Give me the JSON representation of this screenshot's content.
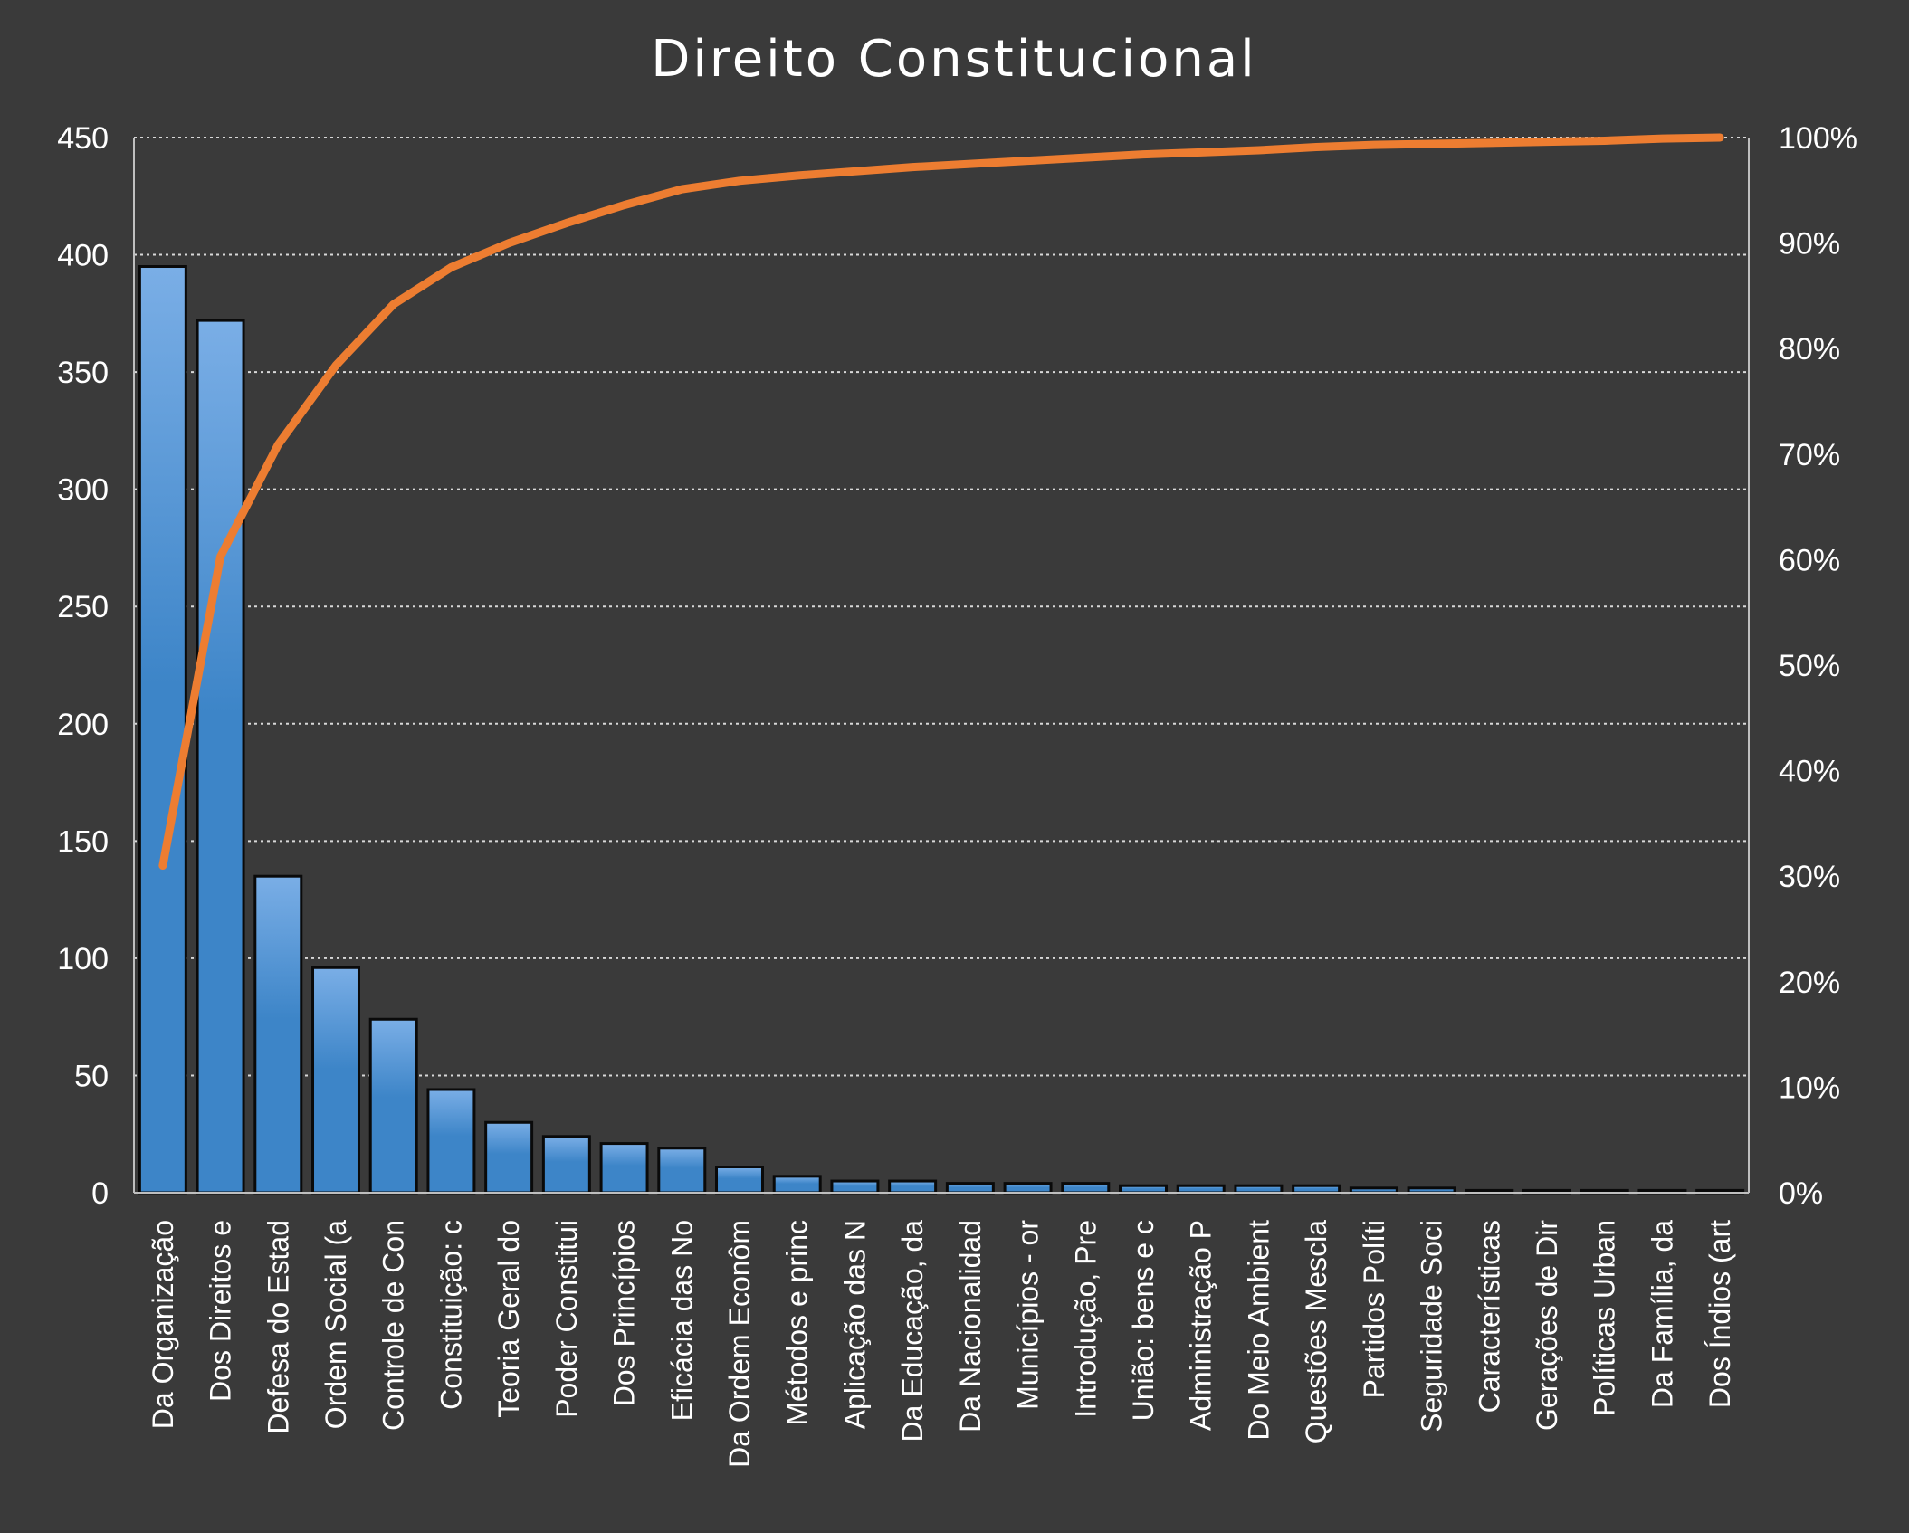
{
  "chart_data": {
    "type": "bar",
    "title": "Direito Constitucional",
    "categories": [
      "Da Organização",
      "Dos Direitos e",
      "Defesa do Estad",
      "Ordem Social (a",
      "Controle de Con",
      "Constituição: c",
      "Teoria Geral do",
      "Poder Constitui",
      "Dos Princípios",
      "Eficácia das No",
      "Da Ordem Econôm",
      "Métodos e princ",
      "Aplicação das N",
      "Da Educação, da",
      "Da Nacionalidad",
      "Municípios - or",
      "Introdução, Pre",
      "União: bens e c",
      "Administração P",
      "Do Meio Ambient",
      "Questões Mescla",
      "Partidos Políti",
      "Seguridade Soci",
      "Características",
      "Gerações de Dir",
      "Políticas Urban",
      "Da Família, da",
      "Dos Índios (art"
    ],
    "series": [
      {
        "type": "bar",
        "axis": "left",
        "values": [
          395,
          372,
          135,
          96,
          74,
          44,
          30,
          24,
          21,
          19,
          11,
          7,
          5,
          5,
          4,
          4,
          4,
          3,
          3,
          3,
          3,
          2,
          2,
          1,
          1,
          1,
          1,
          1
        ]
      },
      {
        "type": "line",
        "axis": "right",
        "values": [
          0.31,
          0.603,
          0.709,
          0.784,
          0.842,
          0.877,
          0.9,
          0.919,
          0.936,
          0.951,
          0.959,
          0.964,
          0.968,
          0.972,
          0.975,
          0.978,
          0.981,
          0.984,
          0.986,
          0.988,
          0.991,
          0.993,
          0.994,
          0.995,
          0.996,
          0.997,
          0.999,
          1.0
        ]
      }
    ],
    "y_left": {
      "min": 0,
      "max": 450,
      "ticks": [
        "0",
        "50",
        "100",
        "150",
        "200",
        "250",
        "300",
        "350",
        "400",
        "450"
      ]
    },
    "y_right": {
      "min": 0,
      "max": 1,
      "ticks": [
        "0%",
        "10%",
        "20%",
        "30%",
        "40%",
        "50%",
        "60%",
        "70%",
        "80%",
        "90%",
        "100%"
      ]
    },
    "grid": true,
    "legend": "none",
    "colors": {
      "bar_top": "#7aaee6",
      "bar_bottom": "#3d85c8",
      "line": "#ed7d31",
      "background": "#3a3a3a"
    }
  }
}
